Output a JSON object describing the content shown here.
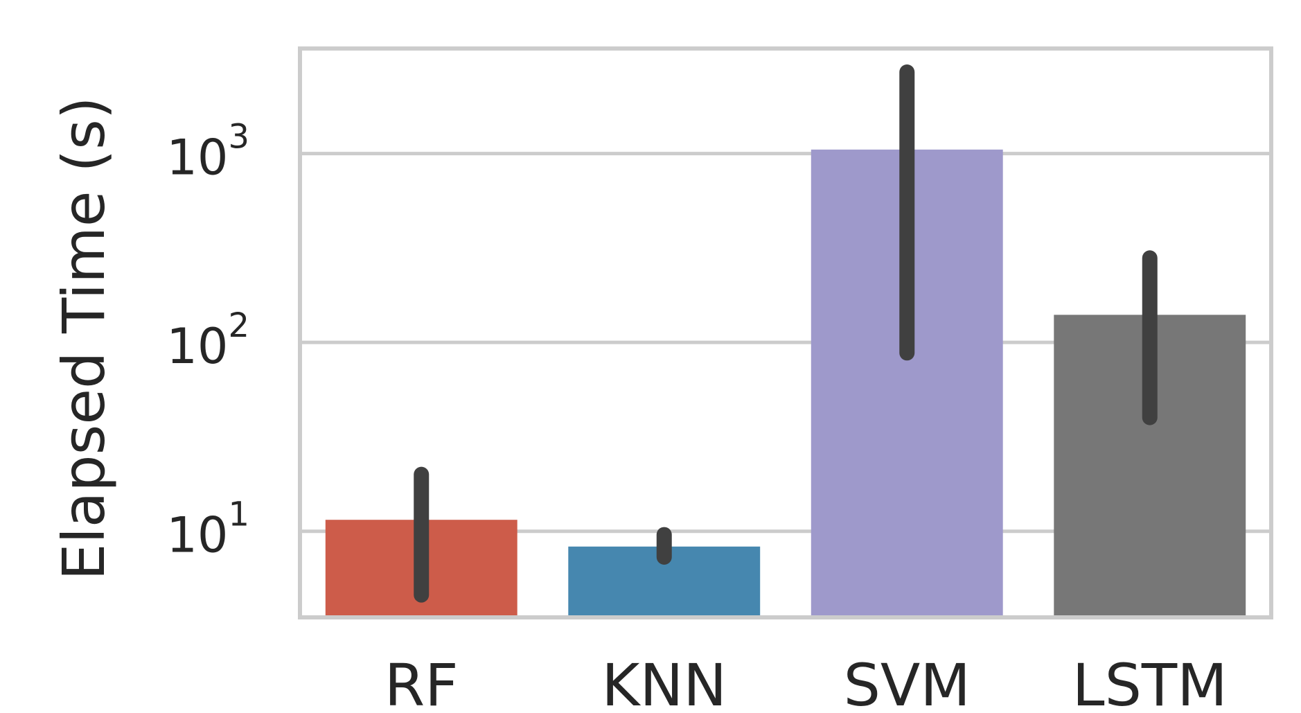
{
  "chart_data": {
    "type": "bar",
    "title": "",
    "xlabel": "",
    "ylabel": "Elapsed Time (s)",
    "yscale": "log",
    "ylim": [
      3.5,
      3600
    ],
    "grid": true,
    "categories": [
      "RF",
      "KNN",
      "SVM",
      "LSTM"
    ],
    "values": [
      11.5,
      8.3,
      1050,
      140
    ],
    "error_low": [
      4.6,
      7.3,
      88,
      40
    ],
    "error_high": [
      20,
      9.6,
      2700,
      280
    ],
    "colors": [
      "#cd5c4a",
      "#4687af",
      "#9e99cb",
      "#777777"
    ],
    "error_color": "#404040",
    "yticks": [
      {
        "base": "10",
        "exp": "1",
        "value": 10
      },
      {
        "base": "10",
        "exp": "2",
        "value": 100
      },
      {
        "base": "10",
        "exp": "3",
        "value": 1000
      }
    ]
  }
}
